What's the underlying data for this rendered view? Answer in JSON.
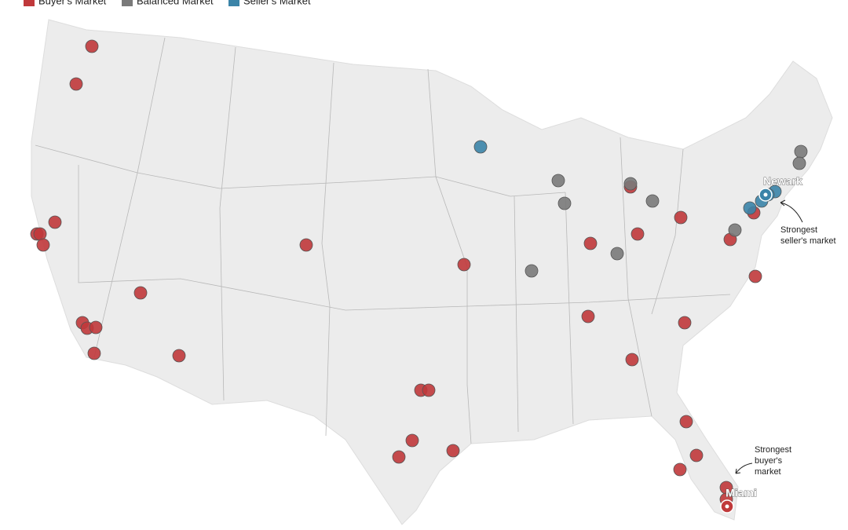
{
  "legend": [
    {
      "name": "Buyer's Market",
      "color": "#c0393b"
    },
    {
      "name": "Balanced Market",
      "color": "#7a7a7a"
    },
    {
      "name": "Seller's Market",
      "color": "#3b84a8"
    }
  ],
  "labels": {
    "newark": "Newark",
    "miami": "Miami"
  },
  "annotations": {
    "seller": [
      "Strongest",
      "seller's market"
    ],
    "buyer": [
      "Strongest",
      "buyer's",
      "market"
    ]
  }
}
